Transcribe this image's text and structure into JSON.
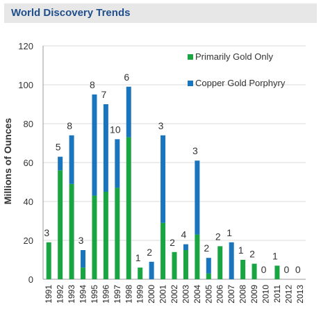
{
  "header": {
    "title": "World Discovery Trends"
  },
  "chart_data": {
    "type": "bar",
    "stacked": true,
    "title": "World Discovery Trends",
    "xlabel": "",
    "ylabel": "Millions of Ounces",
    "ylim": [
      0,
      120
    ],
    "yticks": [
      0,
      20,
      40,
      60,
      80,
      100,
      120
    ],
    "grid": true,
    "legend": "top-right",
    "categories": [
      "1991",
      "1992",
      "1993",
      "1994",
      "1995",
      "1996",
      "1997",
      "1998",
      "1999",
      "2000",
      "2001",
      "2002",
      "2003",
      "2004",
      "2005",
      "2006",
      "2007",
      "2008",
      "2009",
      "2010",
      "2011",
      "2012",
      "2013"
    ],
    "series": [
      {
        "name": "Primarily Gold Only",
        "color": "#1aa543",
        "values": [
          19,
          56,
          49,
          6,
          43,
          45,
          47,
          73,
          6,
          0,
          29,
          14,
          15,
          23,
          3,
          17,
          0,
          10,
          8,
          0,
          7,
          0,
          0
        ]
      },
      {
        "name": "Copper Gold Porphyry",
        "color": "#1a75bc",
        "values": [
          0,
          7,
          25,
          9,
          52,
          45,
          25,
          26,
          0,
          9,
          45,
          0,
          3,
          38,
          8,
          0,
          19,
          0,
          0,
          0,
          0,
          0,
          0
        ]
      }
    ],
    "annotations": [
      "3",
      "5",
      "8",
      "3",
      "8",
      "7",
      "10",
      "6",
      "1",
      "2",
      "3",
      "2",
      "4",
      "3",
      "2",
      "2",
      "1",
      "1",
      "2",
      "0",
      "1",
      "0",
      "0"
    ]
  }
}
